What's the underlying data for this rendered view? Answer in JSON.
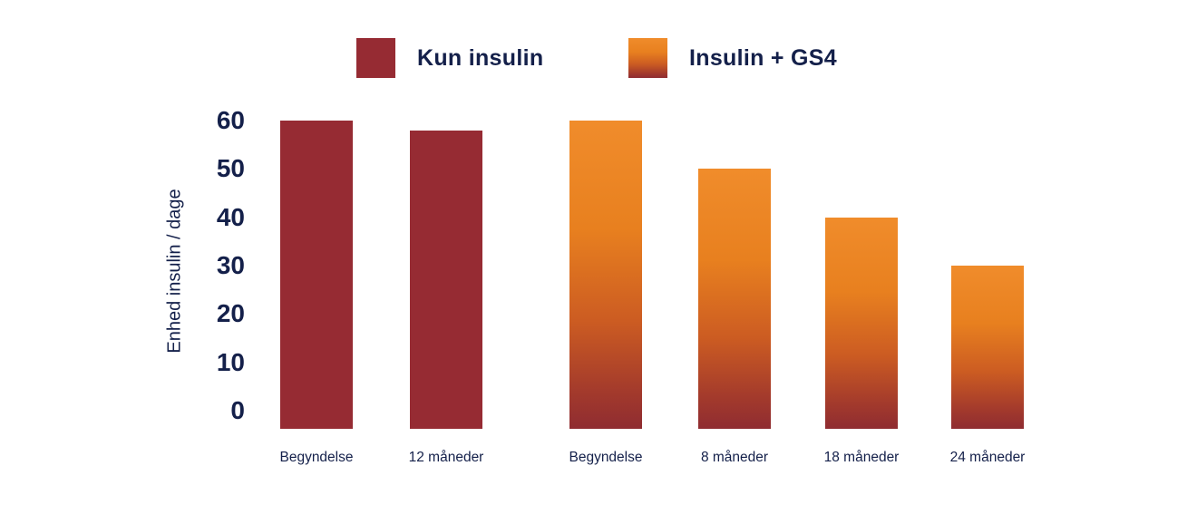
{
  "chart_data": {
    "type": "bar",
    "title": "",
    "xlabel": "",
    "ylabel": "Enhed insulin / dage",
    "ylim": [
      0,
      60
    ],
    "yticks": [
      60,
      50,
      40,
      30,
      20,
      10,
      0
    ],
    "grid": false,
    "legend_position": "top",
    "background_color": "#FFFFFF",
    "text_color": "#14204A",
    "groups": [
      {
        "name": "Kun insulin",
        "fill": "solid",
        "color": "#962B33",
        "bars": [
          {
            "label": "Begyndelse",
            "value": 60
          },
          {
            "label": "12 måneder",
            "value": 58
          }
        ]
      },
      {
        "name": "Insulin + GS4",
        "fill": "gradient",
        "gradient_top": "#F08C2B",
        "gradient_bottom": "#8F2C31",
        "bars": [
          {
            "label": "Begyndelse",
            "value": 60
          },
          {
            "label": "8 måneder",
            "value": 50
          },
          {
            "label": "18 måneder",
            "value": 40
          },
          {
            "label": "24 måneder",
            "value": 30
          }
        ]
      }
    ]
  }
}
